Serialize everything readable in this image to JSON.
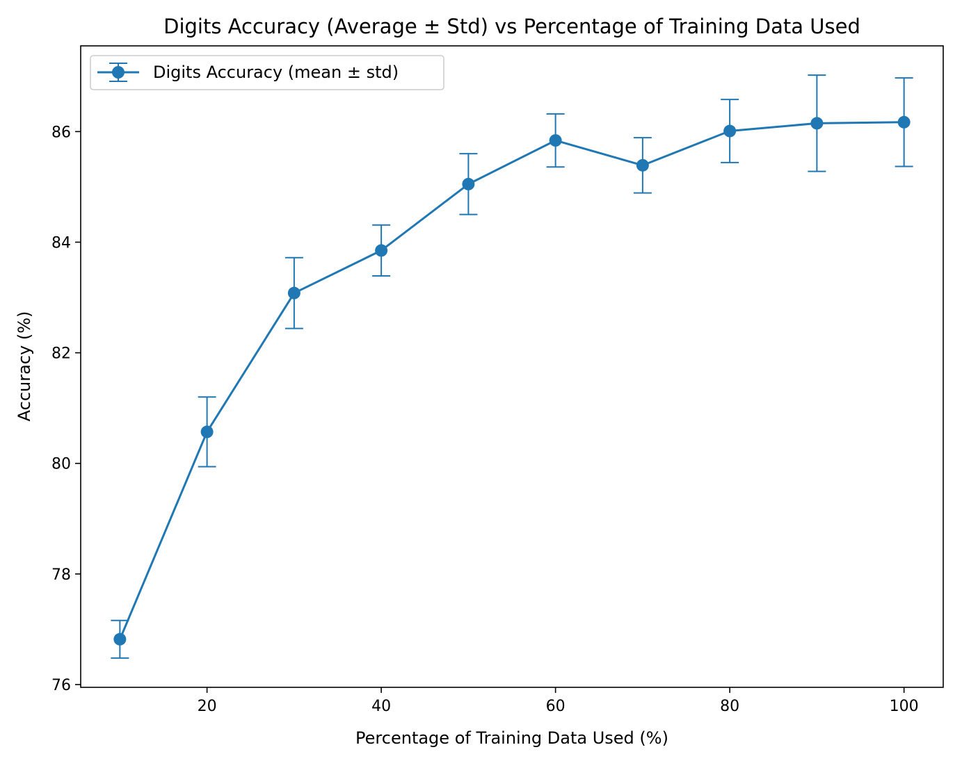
{
  "chart_data": {
    "type": "line",
    "title": "Digits Accuracy (Average ± Std) vs Percentage of Training Data Used",
    "xlabel": "Percentage of Training Data Used (%)",
    "ylabel": "Accuracy (%)",
    "xlim": [
      5.5,
      104.5
    ],
    "ylim": [
      75.95,
      87.55
    ],
    "xticks": [
      20,
      40,
      60,
      80,
      100
    ],
    "yticks": [
      76,
      78,
      80,
      82,
      84,
      86
    ],
    "grid": false,
    "legend_position": "top-left",
    "colors": {
      "series": "#1f77b4",
      "axes": "#000000",
      "background": "#ffffff"
    },
    "series": [
      {
        "name": "Digits Accuracy (mean ± std)",
        "x": [
          10,
          20,
          30,
          40,
          50,
          60,
          70,
          80,
          90,
          100
        ],
        "y": [
          76.82,
          80.57,
          83.08,
          83.85,
          85.05,
          85.84,
          85.39,
          86.01,
          86.15,
          86.17
        ],
        "std": [
          0.34,
          0.63,
          0.64,
          0.46,
          0.55,
          0.48,
          0.5,
          0.57,
          0.87,
          0.8
        ]
      }
    ]
  }
}
